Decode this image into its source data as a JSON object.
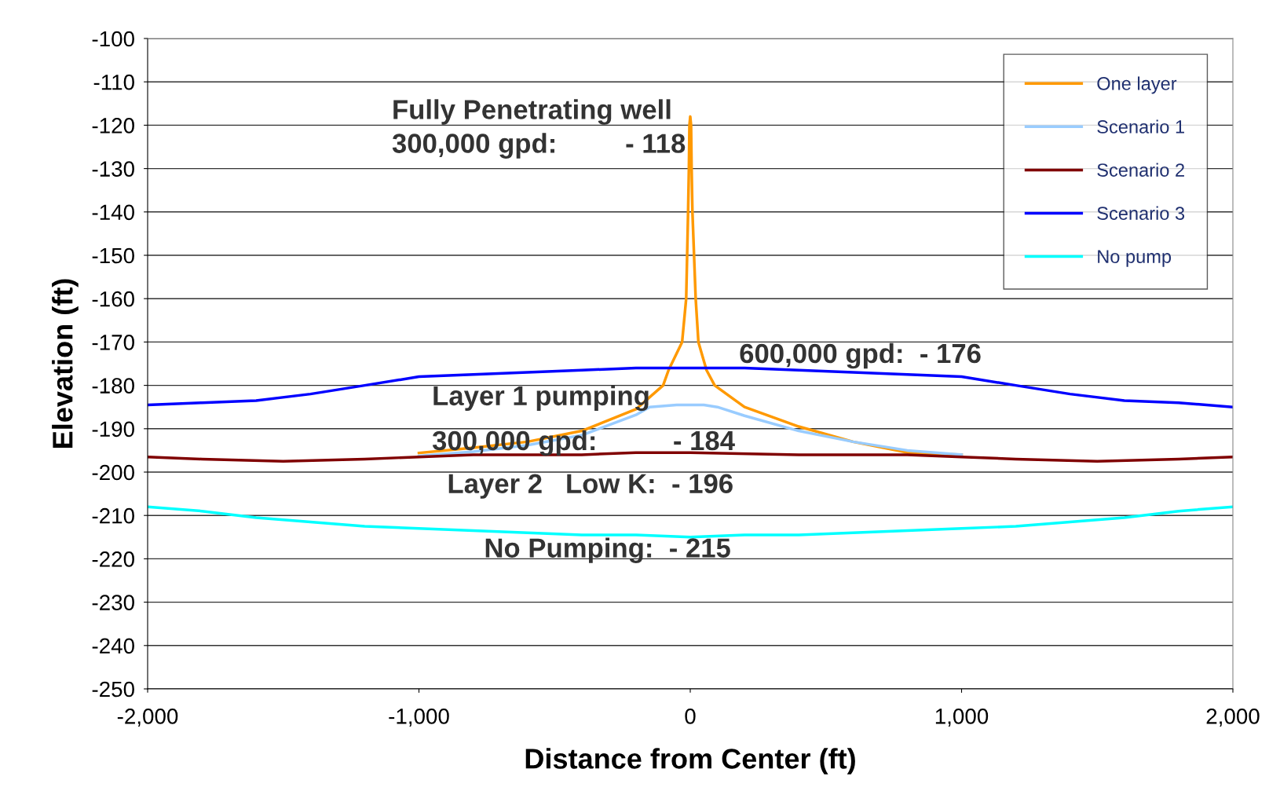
{
  "chart_data": {
    "type": "line",
    "xlabel": "Distance from Center (ft)",
    "ylabel": "Elevation (ft)",
    "xlim": [
      -2000,
      2000
    ],
    "xticks": [
      {
        "value": -2000,
        "label": "-2,000"
      },
      {
        "value": -1000,
        "label": "-1,000"
      },
      0,
      {
        "value": 1000,
        "label": "1,000"
      },
      {
        "value": 2000,
        "label": "2,000"
      }
    ],
    "ylim": [
      -250,
      -100
    ],
    "yticks": [
      -250,
      -240,
      -230,
      -220,
      -210,
      -200,
      -190,
      -180,
      -170,
      -160,
      -150,
      -140,
      -130,
      -120,
      -110,
      -100
    ],
    "grid": "y",
    "legend": "top right",
    "marker": "none",
    "line_style": "solid",
    "series": [
      {
        "name": "One layer",
        "color": "#ff9900",
        "x": [
          -1000,
          -800,
          -600,
          -400,
          -200,
          -100,
          -80,
          -30,
          -15,
          -8,
          -5,
          -3,
          0,
          3,
          5,
          8,
          20,
          30,
          60,
          90,
          200,
          400,
          600,
          800,
          1000
        ],
        "values": [
          -195.6,
          -194.4,
          -193,
          -190.5,
          -185.5,
          -180,
          -176.5,
          -170,
          -160,
          -140,
          -130,
          -120,
          -118,
          -120,
          -130,
          -140,
          -160,
          -170,
          -176.5,
          -180,
          -185,
          -189.5,
          -193,
          -195.5,
          -196
        ]
      },
      {
        "name": "Scenario 1",
        "color": "#99ccff",
        "x": [
          -1000,
          -800,
          -600,
          -400,
          -200,
          -150,
          -50,
          0,
          50,
          100,
          200,
          400,
          600,
          800,
          1000
        ],
        "values": [
          -196.3,
          -195.3,
          -193.8,
          -191.5,
          -186.8,
          -185,
          -184.5,
          -184.5,
          -184.5,
          -185,
          -187,
          -190.5,
          -193,
          -195,
          -196
        ]
      },
      {
        "name": "Scenario 2",
        "color": "#800000",
        "x": [
          -2000,
          -1800,
          -1500,
          -1200,
          -1000,
          -800,
          -400,
          -200,
          0,
          400,
          800,
          1000,
          1200,
          1500,
          1800,
          2000
        ],
        "values": [
          -196.5,
          -197,
          -197.5,
          -197,
          -196.5,
          -196,
          -196,
          -195.5,
          -195.5,
          -196,
          -196,
          -196.5,
          -197,
          -197.5,
          -197,
          -196.5
        ]
      },
      {
        "name": "Scenario 3",
        "color": "#0000ff",
        "x": [
          -2000,
          -1800,
          -1600,
          -1400,
          -1200,
          -1000,
          -800,
          -600,
          -400,
          -200,
          0,
          200,
          400,
          600,
          800,
          1000,
          1200,
          1400,
          1600,
          1800,
          2000
        ],
        "values": [
          -184.5,
          -184,
          -183.5,
          -182,
          -180,
          -178,
          -177.5,
          -177,
          -176.5,
          -176,
          -176,
          -176,
          -176.5,
          -177,
          -177.5,
          -178,
          -180,
          -182,
          -183.5,
          -184,
          -185
        ]
      },
      {
        "name": "No pump",
        "color": "#00ffff",
        "x": [
          -2000,
          -1800,
          -1600,
          -1400,
          -1200,
          -1000,
          -800,
          -600,
          -400,
          -200,
          0,
          200,
          400,
          600,
          800,
          1000,
          1200,
          1400,
          1600,
          1800,
          2000
        ],
        "values": [
          -208,
          -209,
          -210.5,
          -211.5,
          -212.5,
          -213,
          -213.5,
          -214,
          -214.5,
          -214.5,
          -215,
          -214.5,
          -214.5,
          -214,
          -213.5,
          -213,
          -212.5,
          -211.5,
          -210.5,
          -209,
          -208
        ]
      }
    ],
    "annotations": [
      "Fully Penetrating well",
      "300,000 gpd:         - 118",
      "600,000 gpd:  - 176",
      "Layer 1 pumping",
      "300,000 gpd:          - 184",
      "Layer 2   Low K:  - 196",
      "No Pumping:  - 215"
    ]
  }
}
